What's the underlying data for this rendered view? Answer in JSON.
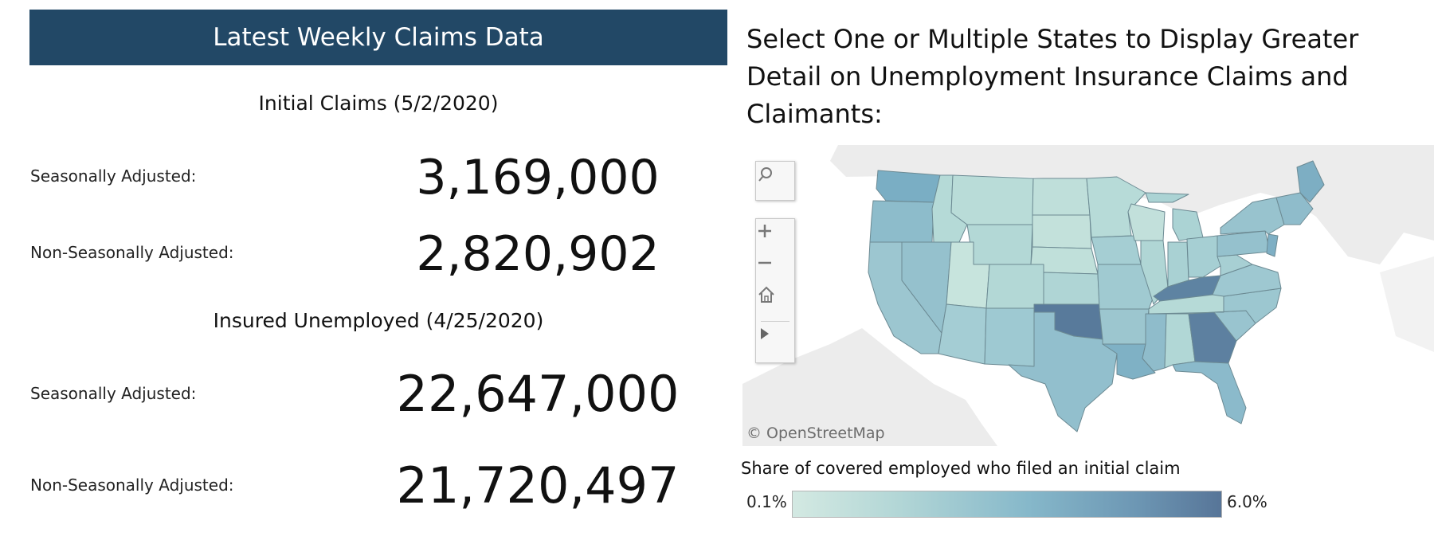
{
  "summary": {
    "title": "Latest Weekly Claims Data",
    "initial_claims": {
      "heading": "Initial Claims (5/2/2020)",
      "sa_label": "Seasonally Adjusted:",
      "sa_value": "3,169,000",
      "nsa_label": "Non-Seasonally Adjusted:",
      "nsa_value": "2,820,902"
    },
    "insured_unemployed": {
      "heading": "Insured Unemployed (4/25/2020)",
      "sa_label": "Seasonally Adjusted:",
      "sa_value": "22,647,000",
      "nsa_label": "Non-Seasonally Adjusted:",
      "nsa_value": "21,720,497"
    }
  },
  "map": {
    "heading": "Select One or Multiple States to Display Greater Detail on Unemployment Insurance Claims and Claimants:",
    "attribution": "© OpenStreetMap",
    "controls": [
      "search-icon",
      "zoom-in-icon",
      "zoom-out-icon",
      "home-icon",
      "play-icon"
    ],
    "legend": {
      "title": "Share of covered employed who filed an initial claim",
      "min": "0.1%",
      "max": "6.0%",
      "colors": [
        "#d3e9e2",
        "#b2d6d6",
        "#86b8ca",
        "#6d97b4",
        "#577598"
      ]
    },
    "highlight_colors": {
      "light": "#c4e0dc",
      "mid": "#9fcad1",
      "medium": "#85b6c7",
      "dark": "#5a7d9e"
    }
  }
}
